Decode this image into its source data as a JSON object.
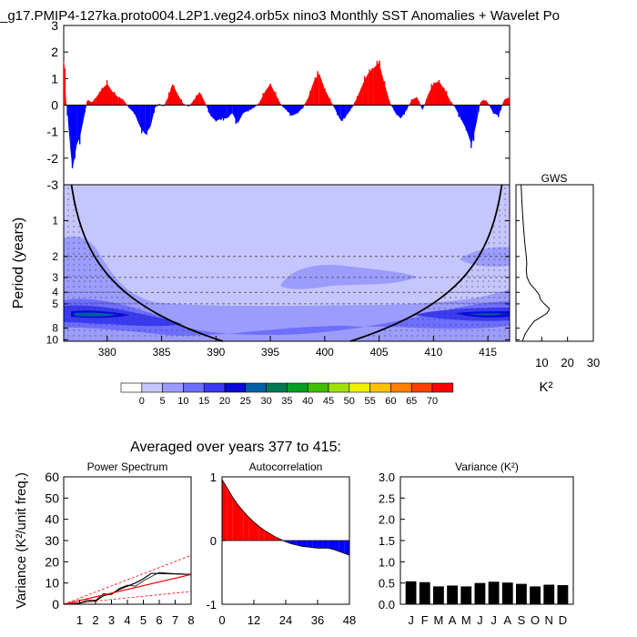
{
  "title": "_g17.PMIP4-127ka.proto004.L2P1.veg24.orb5x nino3 Monthly SST Anomalies + Wavelet Po",
  "colors": {
    "positive": "#ff0000",
    "negative": "#0000ff",
    "cone": "#000000"
  },
  "chart_data": [
    {
      "id": "anomaly",
      "type": "area",
      "title": "",
      "xlabel": "",
      "ylabel": "",
      "xlim": [
        376,
        417
      ],
      "ylim": [
        -3,
        3
      ],
      "y_ticks": [
        -3,
        -2,
        -1,
        0,
        1,
        2,
        3
      ],
      "x": [
        376.0,
        376.1,
        376.2,
        376.4,
        376.6,
        376.8,
        377.0,
        377.2,
        377.5,
        377.8,
        378.2,
        378.6,
        379.0,
        379.5,
        380.0,
        380.5,
        381.0,
        381.5,
        382.0,
        382.5,
        383.0,
        383.5,
        384.0,
        384.4,
        384.8,
        385.2,
        385.6,
        386.0,
        386.5,
        387.0,
        387.5,
        388.0,
        388.5,
        389.0,
        389.5,
        390.0,
        390.5,
        391.0,
        391.5,
        392.0,
        392.5,
        393.0,
        393.5,
        394.0,
        394.5,
        395.0,
        395.5,
        396.0,
        396.5,
        397.0,
        397.5,
        398.0,
        398.5,
        399.0,
        399.5,
        400.0,
        400.5,
        401.0,
        401.5,
        402.0,
        402.5,
        403.0,
        403.5,
        404.0,
        404.5,
        405.0,
        405.5,
        406.0,
        406.5,
        407.0,
        407.5,
        408.0,
        408.5,
        409.0,
        409.5,
        410.0,
        410.5,
        411.0,
        411.5,
        412.0,
        412.5,
        413.0,
        413.5,
        414.0,
        414.3,
        414.6,
        415.0,
        415.5,
        416.0,
        416.5,
        417.0
      ],
      "values": [
        1.7,
        1.4,
        0.3,
        -0.6,
        -1.6,
        -2.4,
        -2.0,
        -1.5,
        -1.2,
        -0.6,
        0.2,
        0.1,
        0.3,
        0.6,
        0.8,
        0.5,
        0.3,
        0.2,
        -0.1,
        -0.3,
        -0.8,
        -1.1,
        -0.8,
        -0.1,
        0.05,
        -0.05,
        0.3,
        0.8,
        0.4,
        0.05,
        -0.05,
        0.2,
        0.5,
        0.1,
        -0.4,
        -0.6,
        -0.5,
        -0.5,
        -0.3,
        -0.7,
        -0.3,
        -0.2,
        -0.1,
        0.1,
        0.5,
        0.8,
        0.4,
        0.0,
        -0.2,
        -0.4,
        -0.3,
        -0.1,
        0.3,
        0.9,
        1.2,
        0.6,
        0.2,
        -0.2,
        -0.6,
        -0.4,
        -0.1,
        0.3,
        0.8,
        1.2,
        1.4,
        1.6,
        0.8,
        0.1,
        -0.3,
        -0.5,
        -0.2,
        0.2,
        0.3,
        -0.2,
        0.4,
        0.8,
        0.9,
        0.6,
        0.2,
        -0.1,
        -0.5,
        -0.9,
        -1.5,
        -0.6,
        0.1,
        0.2,
        0.1,
        -0.3,
        -0.4,
        0.2,
        0.3
      ]
    },
    {
      "id": "wavelet",
      "type": "heatmap",
      "title": "",
      "xlabel": "",
      "ylabel": "Period (years)",
      "xlim": [
        376,
        417
      ],
      "x_ticks": [
        380,
        385,
        390,
        395,
        400,
        405,
        410,
        415
      ],
      "y_ticks": [
        1,
        2,
        3,
        4,
        5,
        8,
        10
      ],
      "y_scale": "log",
      "y_range": [
        0.5,
        10.3
      ],
      "contour_levels": [
        0,
        5,
        10,
        15,
        20,
        25,
        30,
        35,
        40,
        45,
        50,
        55,
        60,
        65,
        70
      ],
      "colorbar_colors": [
        "#ffffff",
        "#c6c6ff",
        "#9c9cff",
        "#6e6eff",
        "#3a3af2",
        "#0a0ad6",
        "#0060a8",
        "#007850",
        "#00a020",
        "#40c000",
        "#a0e000",
        "#f0f000",
        "#ffc000",
        "#ff8000",
        "#ff4000",
        "#ff0000"
      ]
    },
    {
      "id": "gws",
      "type": "line",
      "title": "GWS",
      "xlabel": "K²",
      "ylabel": "",
      "xlim": [
        0,
        30
      ],
      "x_ticks": [
        10,
        20,
        30
      ],
      "x": [
        2.0,
        2.3,
        2.6,
        3.0,
        3.5,
        4.0,
        4.2,
        4.0,
        4.3,
        5.5,
        7.5,
        9.0,
        9.5,
        11.0,
        13.0,
        12.0,
        9.5,
        7.0,
        5.0,
        3.5,
        2.5
      ],
      "y": [
        0.5,
        0.7,
        0.9,
        1.2,
        1.6,
        2.0,
        2.3,
        2.6,
        3.0,
        3.4,
        3.8,
        4.2,
        4.6,
        5.0,
        5.5,
        6.0,
        6.5,
        7.0,
        8.0,
        9.0,
        10.3
      ]
    },
    {
      "id": "power_spectrum",
      "type": "line",
      "title": "Power Spectrum",
      "xlabel": "",
      "ylabel": "Variance (K²/unit freq.)",
      "xlim": [
        0,
        8
      ],
      "ylim": [
        0,
        60
      ],
      "x_ticks": [
        1,
        2,
        3,
        4,
        5,
        6,
        7,
        8
      ],
      "y_ticks": [
        0,
        10,
        20,
        30,
        40,
        50,
        60
      ],
      "series": [
        {
          "x": [
            0,
            0.5,
            1.0,
            1.5,
            2.0,
            2.5,
            3.0,
            3.5,
            4.0,
            4.5,
            5.0,
            5.5,
            6.0,
            7.0,
            8.0
          ],
          "values": [
            0,
            0.2,
            0.5,
            1.2,
            1.5,
            4.0,
            5.0,
            7.0,
            8.5,
            10.0,
            12.0,
            14.5,
            14.5,
            14.3,
            14.0
          ]
        },
        {
          "x": [
            0,
            0.5,
            1.0,
            1.5,
            2.0,
            2.5,
            3.0,
            3.5,
            4.0,
            4.5,
            5.0,
            5.5,
            6.0,
            6.5,
            7.0,
            7.5,
            8.0
          ],
          "values": [
            0,
            0.3,
            0.6,
            2.0,
            1.8,
            5.0,
            4.5,
            7.5,
            9.0,
            8.5,
            11.0,
            13.0,
            15.0,
            14.6,
            14.4,
            14.2,
            14.0
          ]
        },
        {
          "x": [
            0,
            8
          ],
          "values": [
            0,
            14
          ]
        },
        {
          "x": [
            0,
            8
          ],
          "values": [
            0,
            23
          ]
        },
        {
          "x": [
            0,
            8
          ],
          "values": [
            0,
            6
          ]
        }
      ]
    },
    {
      "id": "autocorrelation",
      "type": "area",
      "title": "Autocorrelation",
      "xlabel": "",
      "ylabel": "",
      "xlim": [
        0,
        48
      ],
      "ylim": [
        -1,
        1
      ],
      "x_ticks": [
        0,
        12,
        24,
        36,
        48
      ],
      "y_ticks": [
        -1,
        0,
        1
      ],
      "x": [
        0,
        2,
        4,
        6,
        8,
        10,
        12,
        14,
        16,
        18,
        20,
        22,
        24,
        26,
        28,
        30,
        32,
        34,
        36,
        38,
        40,
        42,
        44,
        46,
        48
      ],
      "values": [
        0.96,
        0.82,
        0.68,
        0.56,
        0.46,
        0.37,
        0.29,
        0.22,
        0.16,
        0.11,
        0.06,
        0.02,
        -0.02,
        -0.05,
        -0.07,
        -0.09,
        -0.1,
        -0.11,
        -0.12,
        -0.12,
        -0.12,
        -0.14,
        -0.17,
        -0.2,
        -0.23
      ]
    },
    {
      "id": "variance",
      "type": "bar",
      "title": "Variance (K²)",
      "xlabel": "",
      "ylabel": "",
      "ylim": [
        0,
        3
      ],
      "y_ticks": [
        0.0,
        0.5,
        1.0,
        1.5,
        2.0,
        2.5,
        3.0
      ],
      "categories": [
        "J",
        "F",
        "M",
        "A",
        "M",
        "J",
        "J",
        "A",
        "S",
        "O",
        "N",
        "D"
      ],
      "values": [
        0.54,
        0.52,
        0.42,
        0.44,
        0.42,
        0.5,
        0.53,
        0.51,
        0.48,
        0.42,
        0.46,
        0.45
      ]
    }
  ],
  "colorbar": {
    "labels": [
      "0",
      "5",
      "10",
      "15",
      "20",
      "25",
      "30",
      "35",
      "40",
      "45",
      "50",
      "55",
      "60",
      "65",
      "70"
    ]
  },
  "averaged_label": "Averaged over years 377 to 415:"
}
